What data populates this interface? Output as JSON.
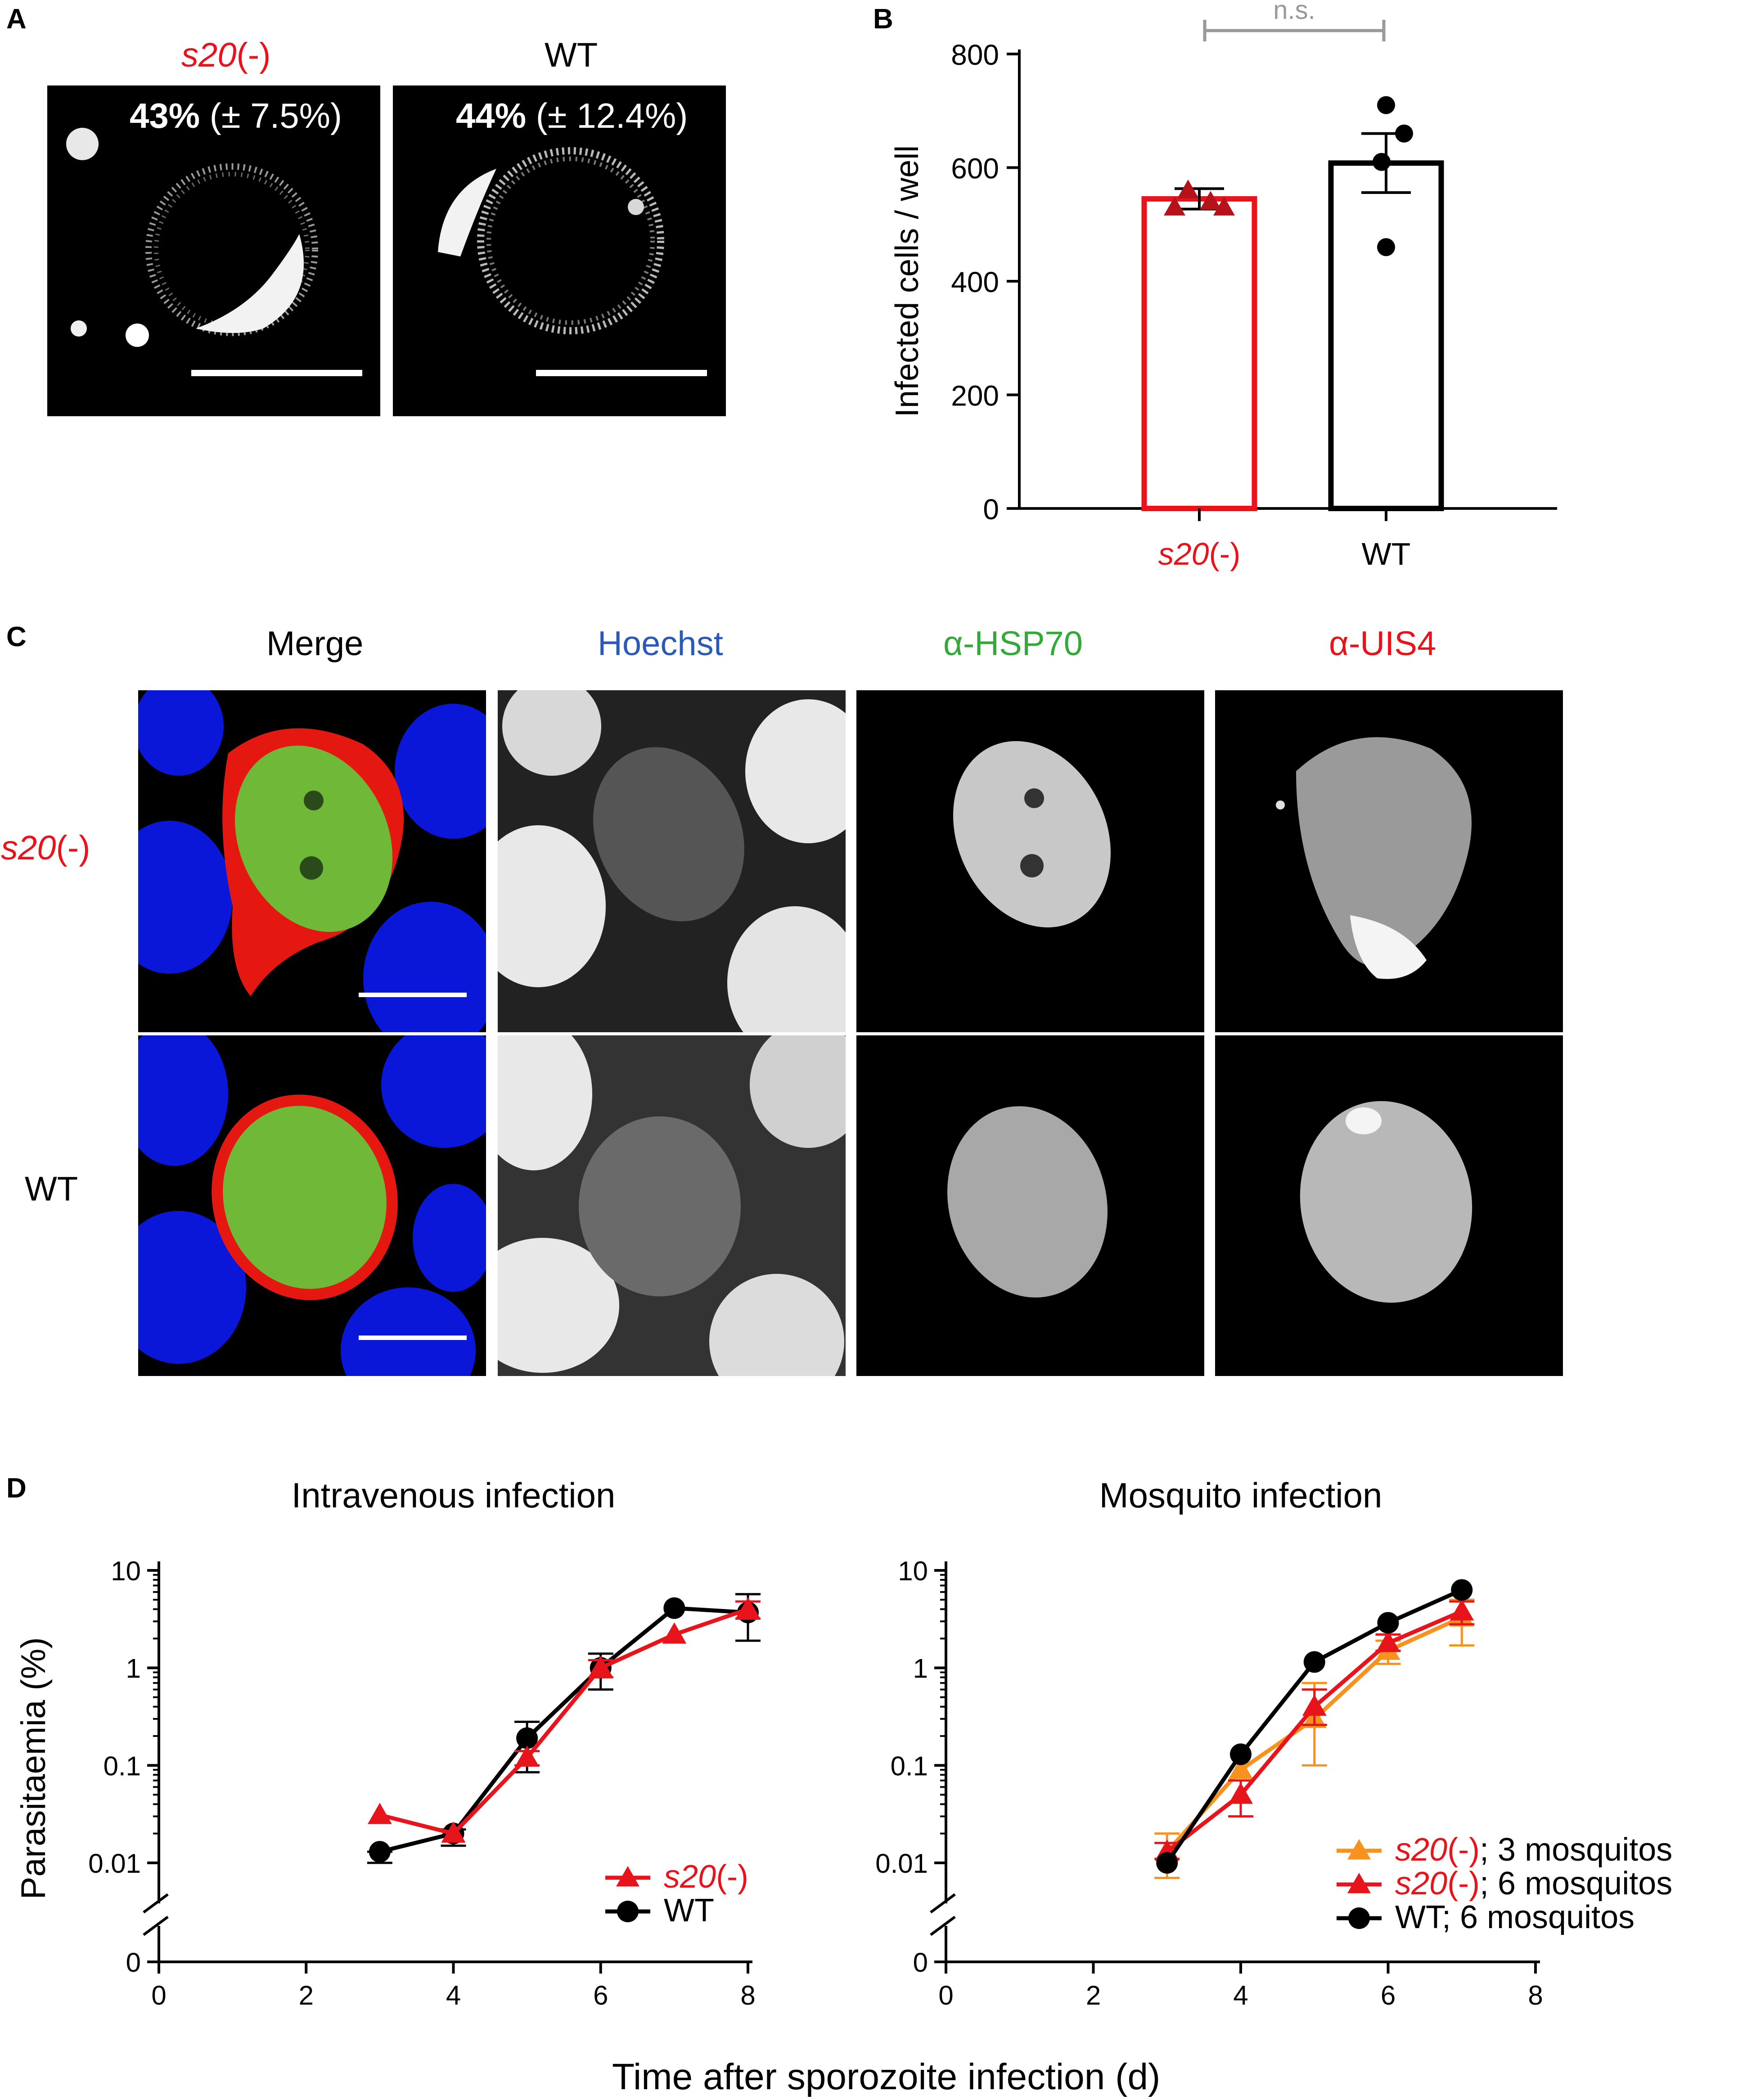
{
  "panel_letters": {
    "a": "A",
    "b": "B",
    "c": "C",
    "d": "D"
  },
  "panelA": {
    "left": {
      "title_italic": "s20",
      "title_suffix": "(-)",
      "pct_bold": "43%",
      "pct_rest": " (± 7.5%)"
    },
    "right": {
      "title": "WT",
      "pct_bold": "44%",
      "pct_rest": " (± 12.4%)"
    }
  },
  "panelC": {
    "columns": [
      "Merge",
      "Hoechst",
      "α-HSP70",
      "α-UIS4"
    ],
    "column_colors": [
      "#000000",
      "#2c59b8",
      "#35a83a",
      "#e8141b"
    ],
    "rows": [
      {
        "label_italic": "s20",
        "label_suffix": "(-)"
      },
      {
        "label": "WT"
      }
    ]
  },
  "colors": {
    "s20": "#e8141b",
    "wt": "#000000",
    "s20_3mosq": "#f7921e",
    "ns": "#999999"
  },
  "chart_data": [
    {
      "id": "B",
      "type": "bar",
      "ylabel": "Infected cells / well",
      "ylim": [
        0,
        800
      ],
      "yticks": [
        0,
        200,
        400,
        600,
        800
      ],
      "categories": [
        {
          "italic": "s20",
          "suffix": "(-)"
        },
        {
          "label": "WT"
        }
      ],
      "values": [
        545,
        608
      ],
      "sem": [
        18,
        52
      ],
      "points": [
        [
          560,
          540,
          530,
          530
        ],
        [
          710,
          660,
          610,
          460
        ]
      ],
      "markers": [
        "triangle",
        "circle"
      ],
      "significance": "n.s."
    },
    {
      "id": "D-left",
      "type": "line",
      "title": "Intravenous infection",
      "ylabel": "Parasitaemia (%)",
      "xlabel": "Time after sporozoite infection (d)",
      "log_y": true,
      "axis_break": true,
      "xlim": [
        0,
        8
      ],
      "xticks": [
        "0",
        "2",
        "4",
        "6",
        "8"
      ],
      "yticks": [
        "0",
        "0.01",
        "0.1",
        "1",
        "10"
      ],
      "series": [
        {
          "name": "WT",
          "marker": "circle",
          "x": [
            3,
            4,
            5,
            6,
            7,
            8
          ],
          "y": [
            0.013,
            0.02,
            0.19,
            1.0,
            4.1,
            3.7
          ],
          "err_low": [
            0.01,
            0.015,
            0.085,
            0.6,
            4.1,
            1.9
          ],
          "err_high": [
            0.013,
            0.022,
            0.28,
            1.4,
            4.1,
            5.7
          ]
        },
        {
          "italic": "s20",
          "suffix": "(-)",
          "marker": "triangle",
          "x": [
            3,
            4,
            5,
            6,
            7,
            8
          ],
          "y": [
            0.031,
            0.02,
            0.12,
            1.0,
            2.2,
            4.0
          ],
          "err_low": [
            0.031,
            0.02,
            0.1,
            0.8,
            2.2,
            3.2
          ],
          "err_high": [
            0.031,
            0.02,
            0.14,
            1.2,
            2.2,
            4.8
          ]
        }
      ]
    },
    {
      "id": "D-right",
      "type": "line",
      "title": "Mosquito infection",
      "log_y": true,
      "axis_break": true,
      "xlim": [
        0,
        8
      ],
      "xticks": [
        "0",
        "2",
        "4",
        "6",
        "8"
      ],
      "yticks": [
        "0",
        "0.01",
        "0.1",
        "1",
        "10"
      ],
      "series": [
        {
          "italic": "s20",
          "suffix": "(-); 3 mosquitos",
          "marker": "triangle",
          "x": [
            3,
            4,
            5,
            6,
            7
          ],
          "y": [
            0.013,
            0.09,
            0.3,
            1.5,
            3.3
          ],
          "err_low": [
            0.007,
            0.09,
            0.1,
            1.1,
            1.7
          ],
          "err_high": [
            0.02,
            0.09,
            0.7,
            1.9,
            5.0
          ]
        },
        {
          "italic": "s20",
          "suffix": "(-); 6 mosquitos",
          "marker": "triangle",
          "x": [
            3,
            4,
            5,
            6,
            7
          ],
          "y": [
            0.013,
            0.05,
            0.4,
            1.8,
            3.8
          ],
          "err_low": [
            0.011,
            0.03,
            0.26,
            1.5,
            2.8
          ],
          "err_high": [
            0.016,
            0.07,
            0.6,
            2.2,
            4.8
          ]
        },
        {
          "name": "WT; 6 mosquitos",
          "marker": "circle",
          "x": [
            3,
            4,
            5,
            6,
            7
          ],
          "y": [
            0.01,
            0.13,
            1.15,
            2.9,
            6.3
          ],
          "err_low": [
            0.01,
            0.13,
            1.15,
            2.9,
            6.3
          ],
          "err_high": [
            0.01,
            0.13,
            1.15,
            2.9,
            6.3
          ]
        }
      ]
    }
  ]
}
